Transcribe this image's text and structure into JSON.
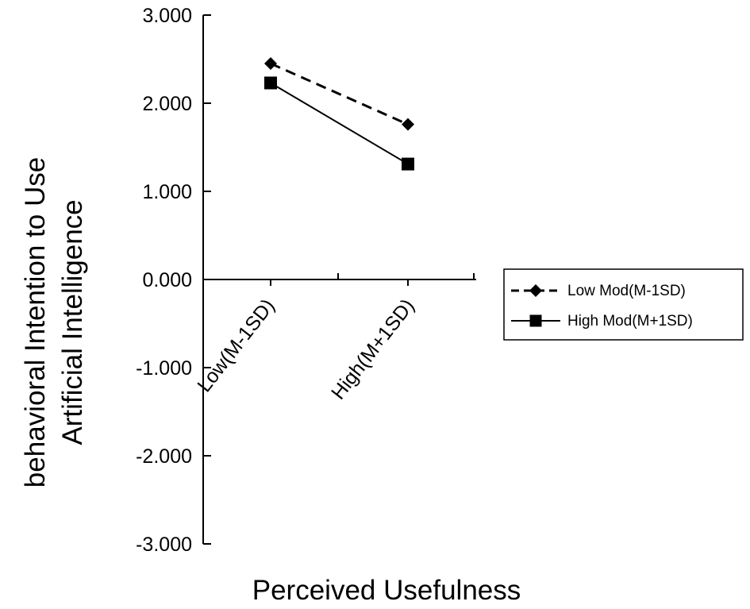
{
  "chart_data": {
    "type": "line",
    "xlabel": "Perceived Usefulness",
    "ylabel_lines": [
      "behavioral Intention to Use",
      "Artificial Intelligence"
    ],
    "categories": [
      "Low(M-1SD)",
      "High(M+1SD)"
    ],
    "ylim": [
      -3,
      3
    ],
    "yticks": [
      3,
      2,
      1,
      0,
      -1,
      -2,
      -3
    ],
    "ytick_labels": [
      "3.000",
      "2.000",
      "1.000",
      "0.000",
      "-1.000",
      "-2.000",
      "-3.000"
    ],
    "grid": false,
    "legend_position": "right",
    "series": [
      {
        "name": "Low Mod(M-1SD)",
        "values": [
          2.45,
          1.76
        ],
        "marker": "diamond",
        "line": "dashed",
        "color": "#000000"
      },
      {
        "name": "High Mod(M+1SD)",
        "values": [
          2.23,
          1.31
        ],
        "marker": "square",
        "line": "solid",
        "color": "#000000"
      }
    ]
  }
}
